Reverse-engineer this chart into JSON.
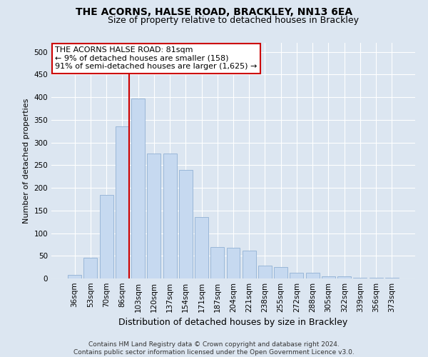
{
  "title": "THE ACORNS, HALSE ROAD, BRACKLEY, NN13 6EA",
  "subtitle": "Size of property relative to detached houses in Brackley",
  "xlabel": "Distribution of detached houses by size in Brackley",
  "ylabel": "Number of detached properties",
  "bar_color": "#c6d9f0",
  "bar_edge_color": "#9ab7d8",
  "background_color": "#dce6f1",
  "plot_bg_color": "#dce6f1",
  "grid_color": "#ffffff",
  "categories": [
    "36sqm",
    "53sqm",
    "70sqm",
    "86sqm",
    "103sqm",
    "120sqm",
    "137sqm",
    "154sqm",
    "171sqm",
    "187sqm",
    "204sqm",
    "221sqm",
    "238sqm",
    "255sqm",
    "272sqm",
    "288sqm",
    "305sqm",
    "322sqm",
    "339sqm",
    "356sqm",
    "373sqm"
  ],
  "values": [
    8,
    46,
    185,
    335,
    397,
    275,
    275,
    240,
    135,
    70,
    68,
    62,
    28,
    26,
    12,
    12,
    5,
    4,
    2,
    1,
    2
  ],
  "ylim": [
    0,
    520
  ],
  "yticks": [
    0,
    50,
    100,
    150,
    200,
    250,
    300,
    350,
    400,
    450,
    500
  ],
  "vline_x": 3.45,
  "vline_color": "#cc0000",
  "annotation_text": "THE ACORNS HALSE ROAD: 81sqm\n← 9% of detached houses are smaller (158)\n91% of semi-detached houses are larger (1,625) →",
  "annotation_box_color": "#ffffff",
  "annotation_box_edge": "#cc0000",
  "footer_text": "Contains HM Land Registry data © Crown copyright and database right 2024.\nContains public sector information licensed under the Open Government Licence v3.0.",
  "title_fontsize": 10,
  "subtitle_fontsize": 9,
  "xlabel_fontsize": 9,
  "ylabel_fontsize": 8,
  "tick_fontsize": 7.5,
  "annotation_fontsize": 8,
  "footer_fontsize": 6.5
}
